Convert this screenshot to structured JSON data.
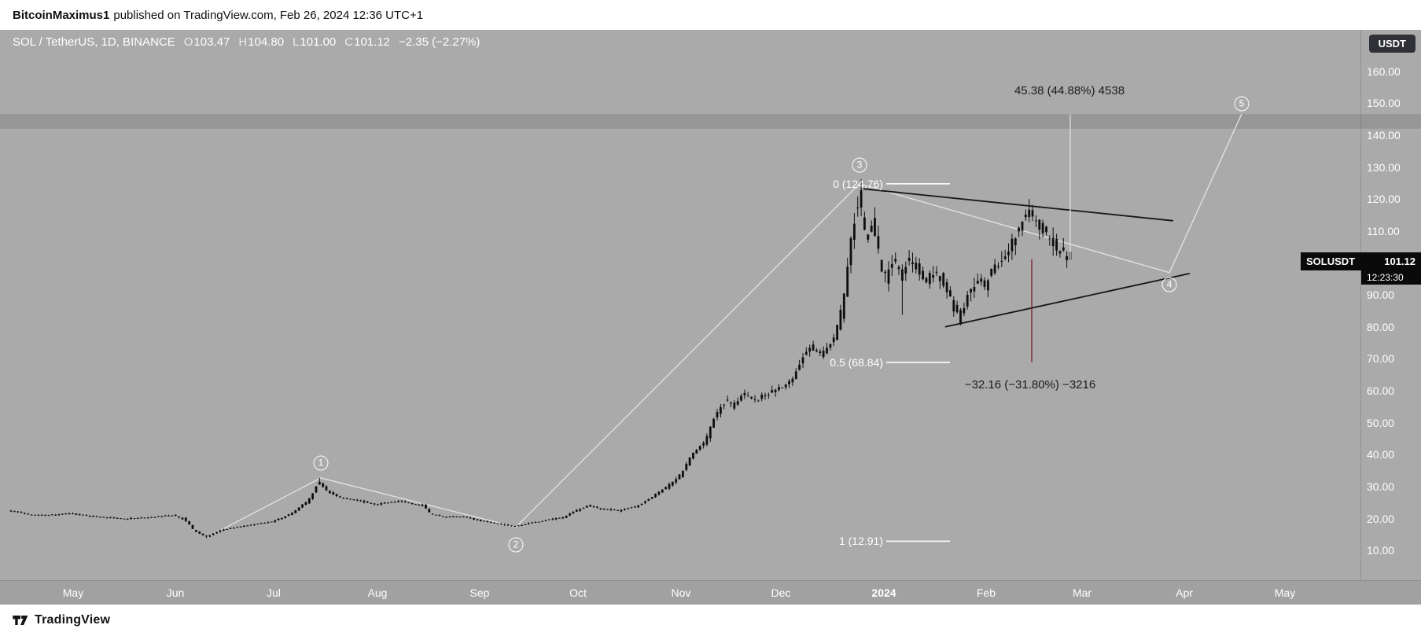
{
  "header": {
    "publisher": "BitcoinMaximus1",
    "rest": "published on TradingView.com, Feb 26, 2024 12:36 UTC+1"
  },
  "legend": {
    "symbol": "SOL / TetherUS, 1D, BINANCE",
    "o_label": "O",
    "o_value": "103.47",
    "h_label": "H",
    "h_value": "104.80",
    "l_label": "L",
    "l_value": "101.00",
    "c_label": "C",
    "c_value": "101.12",
    "change": "−2.35 (−2.27%)"
  },
  "price_axis": {
    "currency": "USDT",
    "ticks": [
      "160.00",
      "150.00",
      "140.00",
      "130.00",
      "120.00",
      "110.00",
      "100.00",
      "90.00",
      "80.00",
      "70.00",
      "60.00",
      "50.00",
      "40.00",
      "30.00",
      "20.00",
      "10.00"
    ]
  },
  "price_label": {
    "symbol": "SOLUSDT",
    "price": "101.12",
    "countdown": "12:23:30"
  },
  "time_axis": {
    "ticks": [
      "May",
      "Jun",
      "Jul",
      "Aug",
      "Sep",
      "Oct",
      "Nov",
      "Dec",
      "2024",
      "Feb",
      "Mar",
      "Apr",
      "May"
    ]
  },
  "annotations": {
    "up_measure": "45.38 (44.88%) 4538",
    "down_measure": "−32.16 (−31.80%) −3216",
    "fib": [
      {
        "label": "0 (124.76)",
        "price": 124.76
      },
      {
        "label": "0.5 (68.84)",
        "price": 68.84
      },
      {
        "label": "1 (12.91)",
        "price": 12.91
      }
    ],
    "waves": [
      {
        "n": "1",
        "f": 0.2925,
        "price": 37.4
      },
      {
        "n": "2",
        "f": 0.4766,
        "price": 11.8
      },
      {
        "n": "3",
        "f": 0.801,
        "price": 130.6
      },
      {
        "n": "4",
        "f": 1.0936,
        "price": 93.2
      },
      {
        "n": "5",
        "f": 1.1618,
        "price": 149.8
      }
    ]
  },
  "footer": {
    "brand": "TradingView"
  },
  "chart_data": {
    "type": "candlestick",
    "symbol": "SOL/USDT",
    "exchange": "BINANCE",
    "interval": "1D",
    "title": "SOL / TetherUS, 1D, BINANCE",
    "last_ohlc": {
      "open": 103.47,
      "high": 104.8,
      "low": 101.0,
      "close": 101.12,
      "change": -2.35,
      "change_pct": -2.27
    },
    "ylim": [
      8,
      163
    ],
    "y_ticks": [
      160,
      150,
      140,
      130,
      120,
      110,
      100,
      90,
      80,
      70,
      60,
      50,
      40,
      30,
      20,
      10
    ],
    "x_months": [
      "May",
      "Jun",
      "Jul",
      "Aug",
      "Sep",
      "Oct",
      "Nov",
      "Dec",
      "2024",
      "Feb",
      "Mar",
      "Apr",
      "May"
    ],
    "resistance_zone": [
      142.0,
      146.6
    ],
    "fib_retracement": {
      "level_0": 124.76,
      "level_05": 68.84,
      "level_1": 12.91
    },
    "elliott_waves": [
      {
        "wave": 1,
        "price": 32.7
      },
      {
        "wave": 2,
        "price": 17.33
      },
      {
        "wave": 3,
        "price": 124.76
      },
      {
        "wave": 4,
        "price": 97.0,
        "projected": true
      },
      {
        "wave": 5,
        "price": 146.6,
        "projected": true
      }
    ],
    "projections": {
      "up": {
        "change": 45.38,
        "pct": 44.88,
        "ticks": 4538
      },
      "down": {
        "change": -32.16,
        "pct": -31.8,
        "ticks": -3216
      }
    },
    "wave_path": [
      [
        0.186,
        14.3
      ],
      [
        0.2925,
        32.7
      ],
      [
        0.4766,
        17.33
      ],
      [
        0.801,
        124.76
      ],
      [
        1.0936,
        97.0
      ],
      [
        1.1618,
        146.6
      ]
    ],
    "wedge_lines": [
      [
        [
          0.8047,
          123.2
        ],
        [
          1.0972,
          113.2
        ]
      ],
      [
        [
          0.8819,
          80.0
        ],
        [
          1.1128,
          96.7
        ]
      ]
    ],
    "price_path_anchors": [
      [
        0.0,
        22.5
      ],
      [
        0.024,
        21.0
      ],
      [
        0.059,
        21.5
      ],
      [
        0.084,
        20.5
      ],
      [
        0.11,
        20.0
      ],
      [
        0.136,
        20.5
      ],
      [
        0.155,
        21.0
      ],
      [
        0.166,
        19.5
      ],
      [
        0.175,
        16.0
      ],
      [
        0.186,
        14.3
      ],
      [
        0.201,
        16.5
      ],
      [
        0.218,
        17.5
      ],
      [
        0.235,
        18.5
      ],
      [
        0.248,
        19.0
      ],
      [
        0.266,
        21.5
      ],
      [
        0.283,
        26.0
      ],
      [
        0.292,
        31.5
      ],
      [
        0.3,
        28.5
      ],
      [
        0.313,
        26.5
      ],
      [
        0.33,
        25.5
      ],
      [
        0.346,
        24.5
      ],
      [
        0.369,
        25.5
      ],
      [
        0.391,
        24.0
      ],
      [
        0.397,
        21.5
      ],
      [
        0.412,
        20.5
      ],
      [
        0.429,
        20.5
      ],
      [
        0.442,
        19.5
      ],
      [
        0.46,
        18.5
      ],
      [
        0.477,
        17.6
      ],
      [
        0.49,
        18.5
      ],
      [
        0.507,
        19.5
      ],
      [
        0.524,
        20.5
      ],
      [
        0.535,
        22.5
      ],
      [
        0.546,
        24.0
      ],
      [
        0.559,
        23.0
      ],
      [
        0.576,
        22.5
      ],
      [
        0.593,
        24.0
      ],
      [
        0.61,
        27.5
      ],
      [
        0.623,
        30.5
      ],
      [
        0.633,
        33.5
      ],
      [
        0.641,
        38.0
      ],
      [
        0.649,
        42.0
      ],
      [
        0.658,
        45.0
      ],
      [
        0.666,
        52.0
      ],
      [
        0.675,
        57.0
      ],
      [
        0.684,
        55.0
      ],
      [
        0.692,
        59.0
      ],
      [
        0.705,
        57.0
      ],
      [
        0.718,
        59.5
      ],
      [
        0.727,
        61.0
      ],
      [
        0.74,
        64.0
      ],
      [
        0.748,
        70.0
      ],
      [
        0.757,
        73.5
      ],
      [
        0.766,
        71.0
      ],
      [
        0.774,
        74.0
      ],
      [
        0.781,
        79.0
      ],
      [
        0.787,
        88.0
      ],
      [
        0.793,
        103.0
      ],
      [
        0.801,
        121.0
      ],
      [
        0.809,
        108.0
      ],
      [
        0.816,
        112.0
      ],
      [
        0.822,
        100.0
      ],
      [
        0.828,
        95.0
      ],
      [
        0.834,
        102.0
      ],
      [
        0.841,
        96.0
      ],
      [
        0.847,
        101.0
      ],
      [
        0.856,
        99.0
      ],
      [
        0.865,
        94.0
      ],
      [
        0.873,
        97.5
      ],
      [
        0.882,
        94.0
      ],
      [
        0.891,
        86.0
      ],
      [
        0.897,
        82.5
      ],
      [
        0.905,
        90.5
      ],
      [
        0.914,
        95.0
      ],
      [
        0.921,
        93.0
      ],
      [
        0.929,
        98.0
      ],
      [
        0.938,
        102.0
      ],
      [
        0.947,
        107.0
      ],
      [
        0.955,
        112.5
      ],
      [
        0.962,
        117.0
      ],
      [
        0.969,
        113.0
      ],
      [
        0.977,
        110.0
      ],
      [
        0.985,
        106.5
      ],
      [
        0.992,
        103.5
      ],
      [
        1.0,
        101.1
      ]
    ],
    "spikes": [
      [
        0.186,
        "low",
        13.9
      ],
      [
        0.2925,
        "high",
        32.7
      ],
      [
        0.4766,
        "low",
        17.33
      ],
      [
        0.801,
        "high",
        124.76
      ],
      [
        0.841,
        "low",
        83.8
      ],
      [
        0.897,
        "low",
        80.5
      ],
      [
        0.962,
        "high",
        120.0
      ]
    ],
    "candle_count": 310
  }
}
